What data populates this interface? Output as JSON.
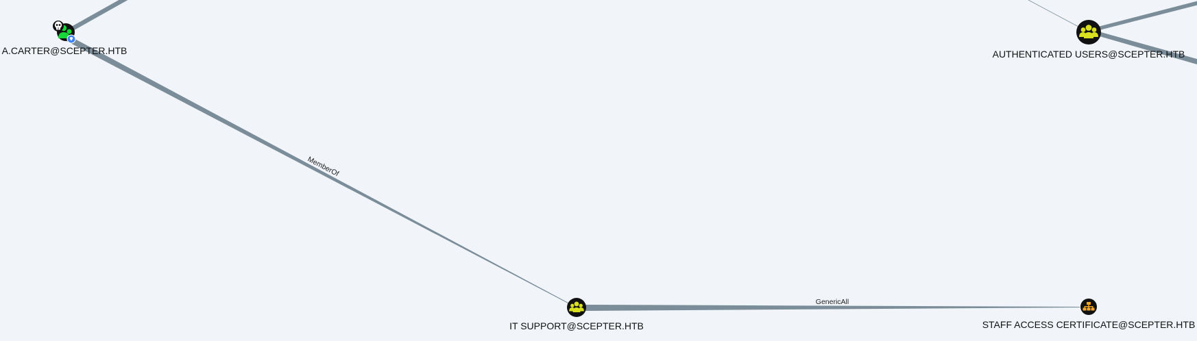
{
  "graph": {
    "colors": {
      "background": "#f1f5f9",
      "edge": "#7a8d99",
      "user_node": "#17d63a",
      "group_node": "#d9e021",
      "cert_node": "#f5a623",
      "owned_marker": "#ffffff",
      "high_value_marker": "#3b82f6"
    },
    "nodes": {
      "a_carter": {
        "label": "A.CARTER@SCEPTER.HTB",
        "kind": "user",
        "icon": "user-icon",
        "markers": [
          "skull-icon",
          "diamond-badge-icon"
        ]
      },
      "authenticated_users": {
        "label": "AUTHENTICATED USERS@SCEPTER.HTB",
        "kind": "group",
        "icon": "group-icon"
      },
      "it_support": {
        "label": "IT SUPPORT@SCEPTER.HTB",
        "kind": "group",
        "icon": "group-icon"
      },
      "staff_access_certificate": {
        "label": "STAFF ACCESS CERTIFICATE@SCEPTER.HTB",
        "kind": "ou",
        "icon": "org-chart-icon"
      }
    },
    "edges": {
      "carter_memberof_itsupport": {
        "label": "MemberOf",
        "from": "a_carter",
        "to": "it_support"
      },
      "itsupport_genericall_staffcert": {
        "label": "GenericAll",
        "from": "it_support",
        "to": "staff_access_certificate"
      }
    }
  }
}
